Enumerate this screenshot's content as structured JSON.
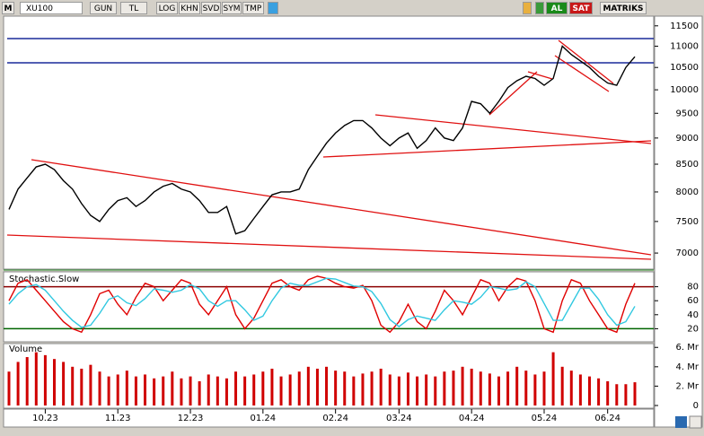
{
  "toolbar": {
    "menu": "M",
    "symbol": "XU100",
    "buttons": [
      "GUN",
      "TL",
      "LOG",
      "KHN",
      "SVD",
      "SYM",
      "TMP"
    ],
    "buy": "AL",
    "sell": "SAT",
    "brand": "MATRIKS"
  },
  "chart_data": [
    {
      "type": "line",
      "color": "#000000",
      "log": true,
      "ylim": [
        6785,
        11700
      ],
      "yticks": [
        7000,
        7500,
        8000,
        8500,
        9000,
        9500,
        10000,
        10500,
        11000,
        11500
      ],
      "values": [
        7700,
        8050,
        8250,
        8450,
        8500,
        8400,
        8200,
        8050,
        7800,
        7600,
        7500,
        7700,
        7850,
        7900,
        7750,
        7850,
        8000,
        8100,
        8150,
        8050,
        8000,
        7850,
        7650,
        7650,
        7750,
        7300,
        7350,
        7550,
        7750,
        7950,
        8000,
        8000,
        8050,
        8400,
        8650,
        8900,
        9100,
        9250,
        9350,
        9350,
        9200,
        9000,
        8850,
        9000,
        9100,
        8800,
        8950,
        9200,
        9000,
        8950,
        9200,
        9750,
        9700,
        9500,
        9750,
        10050,
        10200,
        10300,
        10250,
        10100,
        10250,
        11000,
        10800,
        10650,
        10500,
        10300,
        10150,
        10100,
        10500,
        10750
      ]
    },
    {
      "type": "line",
      "title": "Stochastic.Slow",
      "ylim": [
        0,
        100
      ],
      "yticks": [
        20,
        40,
        60,
        80
      ],
      "reference_lines": [
        {
          "value": 80,
          "color": "#8b0000"
        },
        {
          "value": 20,
          "color": "#006400"
        }
      ],
      "series": [
        {
          "color": "#e00000",
          "values": [
            60,
            85,
            90,
            75,
            60,
            45,
            30,
            20,
            15,
            40,
            70,
            75,
            55,
            40,
            65,
            85,
            80,
            60,
            75,
            90,
            85,
            55,
            40,
            60,
            80,
            40,
            20,
            35,
            60,
            85,
            90,
            80,
            75,
            90,
            95,
            92,
            85,
            80,
            78,
            82,
            60,
            25,
            15,
            30,
            55,
            30,
            20,
            45,
            75,
            60,
            40,
            65,
            90,
            85,
            60,
            80,
            92,
            88,
            60,
            20,
            15,
            60,
            90,
            85,
            60,
            40,
            20,
            15,
            55,
            85
          ]
        },
        {
          "color": "#30c8e0",
          "values": [
            55,
            70,
            80,
            83,
            75,
            60,
            45,
            32,
            22,
            25,
            42,
            62,
            67,
            57,
            53,
            63,
            77,
            75,
            72,
            75,
            83,
            77,
            60,
            52,
            60,
            60,
            47,
            32,
            38,
            60,
            78,
            85,
            82,
            82,
            87,
            92,
            91,
            86,
            81,
            80,
            73,
            56,
            33,
            23,
            33,
            38,
            35,
            32,
            47,
            60,
            58,
            55,
            65,
            80,
            78,
            75,
            77,
            87,
            80,
            56,
            32,
            32,
            55,
            78,
            78,
            62,
            40,
            25,
            30,
            52
          ]
        }
      ]
    },
    {
      "type": "bar",
      "title": "Volume",
      "color": "#d00000",
      "ylim": [
        0,
        6.3
      ],
      "yticks": [
        0,
        {
          "value": 2,
          "label": "2. Mr"
        },
        {
          "value": 4,
          "label": "4. Mr"
        },
        {
          "value": 6,
          "label": "6. Mr"
        }
      ],
      "categories": [
        null,
        null,
        null,
        null,
        "10.23",
        null,
        null,
        null,
        null,
        null,
        null,
        null,
        "11.23",
        null,
        null,
        null,
        null,
        null,
        null,
        null,
        "12.23",
        null,
        null,
        null,
        null,
        null,
        null,
        null,
        "01.24",
        null,
        null,
        null,
        null,
        null,
        null,
        null,
        "02.24",
        null,
        null,
        null,
        null,
        null,
        null,
        "03.24",
        null,
        null,
        null,
        null,
        null,
        null,
        null,
        "04.24",
        null,
        null,
        null,
        null,
        null,
        null,
        null,
        "05.24",
        null,
        null,
        null,
        null,
        null,
        null,
        "06.24",
        null,
        null,
        null
      ],
      "values": [
        3.5,
        4.5,
        5,
        5.5,
        5.2,
        4.8,
        4.5,
        4,
        3.8,
        4.2,
        3.5,
        3,
        3.2,
        3.6,
        3,
        3.2,
        2.8,
        3,
        3.5,
        2.8,
        3,
        2.5,
        3.2,
        3,
        2.8,
        3.5,
        3,
        3.2,
        3.5,
        3.8,
        3,
        3.2,
        3.5,
        4,
        3.8,
        4,
        3.6,
        3.5,
        3,
        3.3,
        3.5,
        3.8,
        3.2,
        3,
        3.4,
        3,
        3.2,
        3,
        3.5,
        3.6,
        4,
        3.8,
        3.5,
        3.3,
        3,
        3.5,
        4,
        3.6,
        3.2,
        3.5,
        5.5,
        4,
        3.6,
        3.2,
        3,
        2.8,
        2.5,
        2.2,
        2.2,
        2.4
      ]
    }
  ]
}
